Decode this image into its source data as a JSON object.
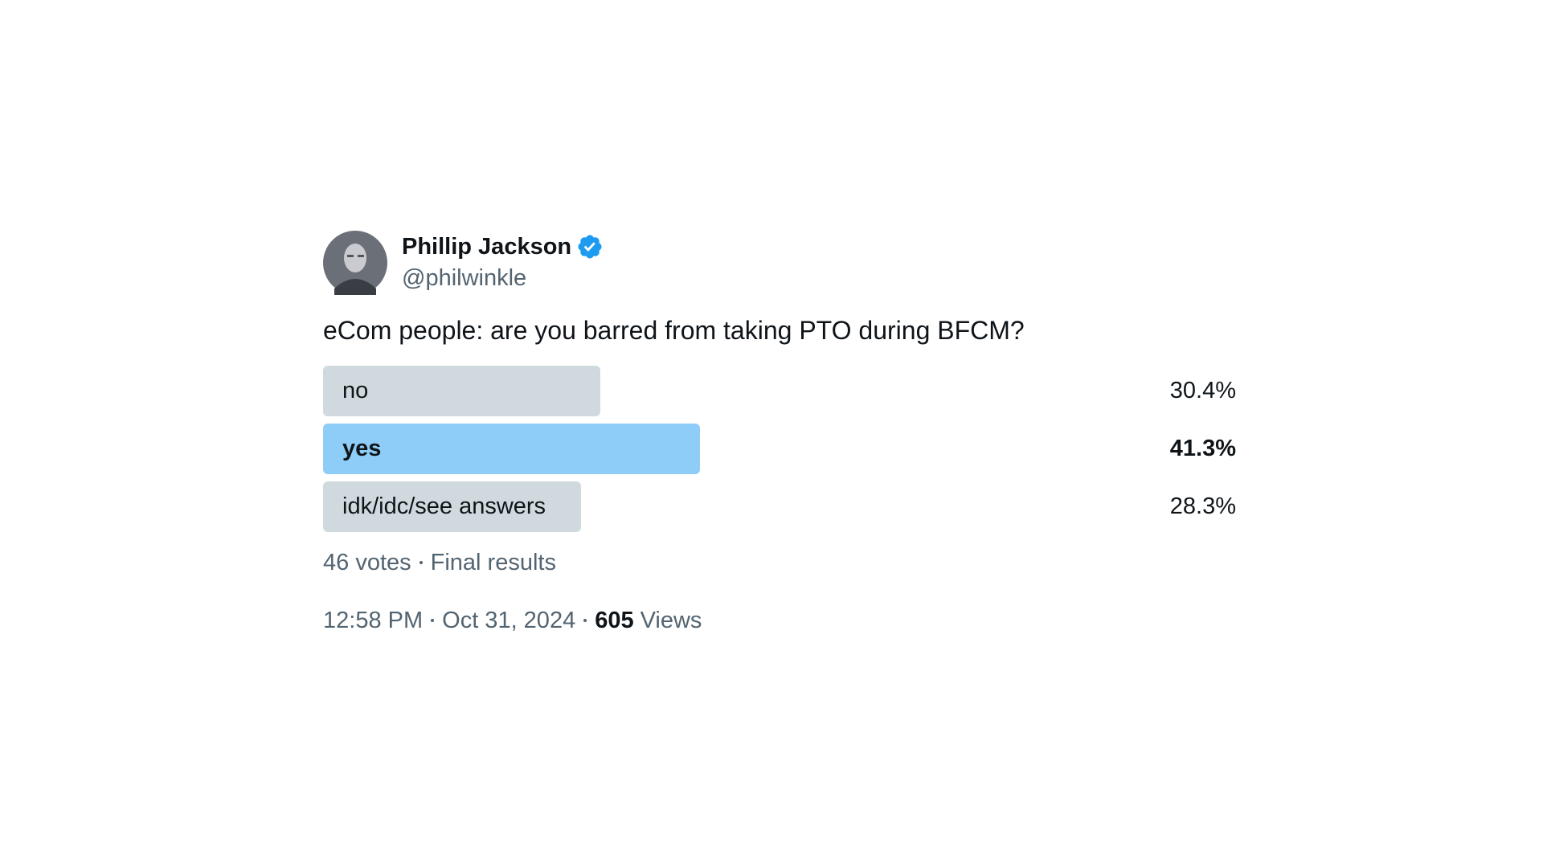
{
  "author": {
    "name": "Phillip Jackson",
    "handle": "@philwinkle"
  },
  "tweet": {
    "text": "eCom people: are you barred from taking PTO during BFCM?"
  },
  "poll": {
    "options": [
      "no",
      "yes",
      "idk/idc/see answers"
    ],
    "values": [
      30.4,
      41.3,
      28.3
    ],
    "value_labels": [
      "30.4%",
      "41.3%",
      "28.3%"
    ],
    "votes": "46 votes",
    "status": "Final results"
  },
  "footer": {
    "time": "12:58 PM",
    "date": "Oct 31, 2024",
    "views_count": "605",
    "views_label": "Views"
  }
}
